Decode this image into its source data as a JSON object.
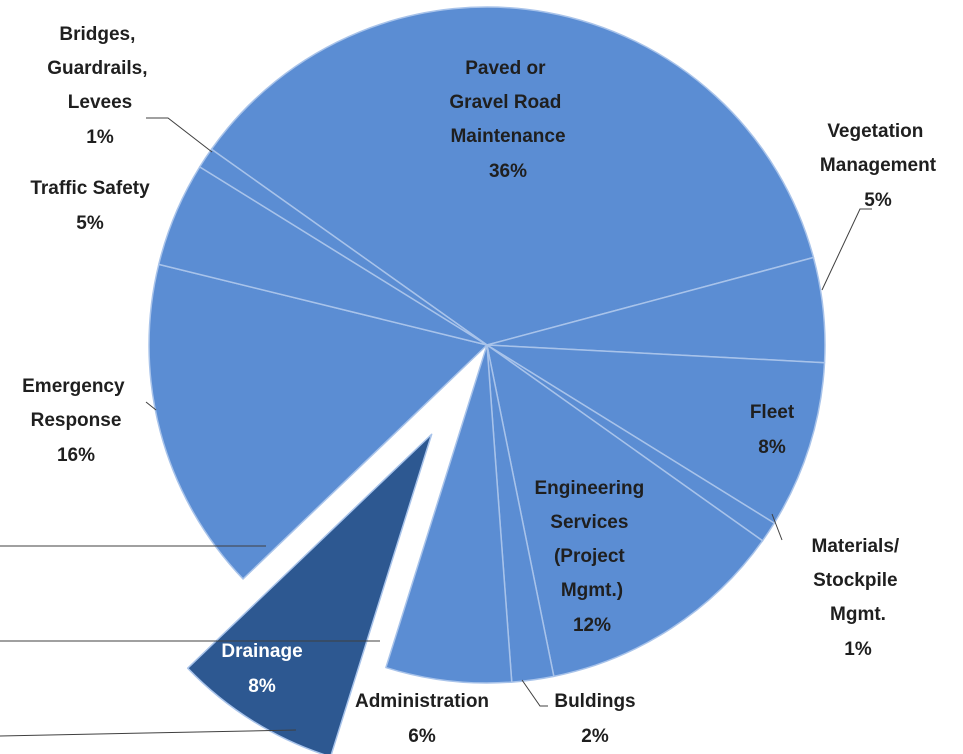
{
  "chart_data": {
    "type": "pie",
    "categories": [
      "Paved or Gravel Road Maintenance",
      "Vegetation Management",
      "Fleet",
      "Materials/ Stockpile Mgmt.",
      "Engineering Services (Project Mgmt.)",
      "Buldings",
      "Administration",
      "Drainage",
      "Emergency Response",
      "Traffic Safety",
      "Bridges, Guardrails, Levees"
    ],
    "values": [
      36,
      5,
      8,
      1,
      12,
      2,
      6,
      8,
      16,
      5,
      1
    ],
    "value_labels": [
      "36%",
      "5%",
      "8%",
      "1%",
      "12%",
      "2%",
      "6%",
      "8%",
      "16%",
      "5%",
      "1%"
    ],
    "colors": [
      "#5b8dd3",
      "#5b8dd3",
      "#5b8dd3",
      "#5b8dd3",
      "#5b8dd3",
      "#5b8dd3",
      "#5b8dd3",
      "#2d5891",
      "#5b8dd3",
      "#5b8dd3",
      "#5b8dd3"
    ],
    "exploded": [
      false,
      false,
      false,
      false,
      false,
      false,
      false,
      true,
      false,
      false,
      false
    ]
  }
}
